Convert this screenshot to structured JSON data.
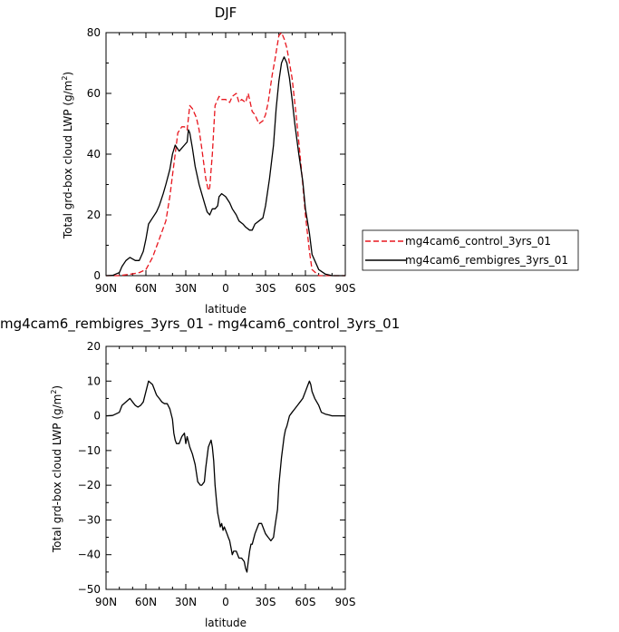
{
  "chart_data": [
    {
      "type": "line",
      "title": "DJF",
      "xlabel": "latitude",
      "ylabel": "Total grd-box cloud LWP (g/m²)",
      "ylabel_text": "Total grd-box cloud LWP (g/m",
      "ylabel_sup": "2",
      "ylabel_close": ")",
      "x_ticks": [
        90,
        60,
        30,
        0,
        -30,
        -60,
        -90
      ],
      "x_tick_labels": [
        "90N",
        "60N",
        "30N",
        "0",
        "30S",
        "60S",
        "90S"
      ],
      "xlim": [
        90,
        -90
      ],
      "ylim": [
        0,
        80
      ],
      "y_ticks": [
        0,
        20,
        40,
        60,
        80
      ],
      "legend_position": "right",
      "series": [
        {
          "name": "mg4cam6_control_3yrs_01",
          "color": "#e8161e",
          "dash": "dashed",
          "x": [
            90,
            80,
            75,
            70,
            65,
            60,
            55,
            50,
            45,
            42,
            40,
            38,
            36,
            33,
            31,
            29,
            27,
            25,
            22,
            20,
            18,
            15,
            13,
            12,
            10,
            8,
            5,
            3,
            0,
            -3,
            -5,
            -8,
            -10,
            -12,
            -15,
            -17,
            -20,
            -22,
            -25,
            -28,
            -30,
            -32,
            -35,
            -37,
            -40,
            -42,
            -44,
            -46,
            -48,
            -50,
            -53,
            -55,
            -58,
            -60,
            -63,
            -65,
            -70,
            -75,
            -80,
            -90
          ],
          "y": [
            0,
            0,
            0.3,
            0.6,
            1,
            2,
            6,
            12,
            18,
            26,
            33,
            40,
            47,
            49,
            49,
            48,
            56,
            55,
            52,
            48,
            42,
            32,
            28,
            29,
            40,
            56,
            59,
            58,
            58,
            57,
            59,
            60,
            57,
            58,
            57,
            60,
            54,
            53,
            50,
            51,
            53,
            57,
            66,
            71,
            79,
            80,
            78,
            75,
            70,
            65,
            53,
            44,
            30,
            20,
            8,
            2,
            0,
            0,
            0,
            0
          ]
        },
        {
          "name": "mg4cam6_rembigres_3yrs_01",
          "color": "#000000",
          "dash": "solid",
          "x": [
            90,
            85,
            80,
            78,
            75,
            72,
            68,
            65,
            62,
            60,
            58,
            55,
            52,
            50,
            47,
            45,
            42,
            40,
            38,
            35,
            33,
            31,
            29,
            28,
            27,
            25,
            23,
            20,
            18,
            16,
            14,
            12,
            10,
            8,
            6,
            5,
            3,
            0,
            -3,
            -5,
            -8,
            -10,
            -13,
            -15,
            -18,
            -20,
            -22,
            -25,
            -28,
            -30,
            -33,
            -36,
            -38,
            -40,
            -42,
            -44,
            -46,
            -48,
            -50,
            -52,
            -55,
            -58,
            -60,
            -63,
            -65,
            -70,
            -75,
            -80,
            -85,
            -90
          ],
          "y": [
            0,
            0.1,
            1,
            3,
            5,
            6,
            5,
            5,
            8,
            12,
            17,
            19,
            21,
            23,
            27,
            30,
            35,
            40,
            43,
            41,
            42,
            43,
            44,
            48,
            47,
            42,
            36,
            30,
            27,
            24,
            21,
            20,
            22,
            22,
            23,
            26,
            27,
            26,
            24,
            22,
            20,
            18,
            17,
            16,
            15,
            15,
            17,
            18,
            19,
            23,
            32,
            43,
            55,
            64,
            70,
            72,
            70,
            65,
            58,
            50,
            40,
            31,
            22,
            14,
            7,
            2,
            0.5,
            0,
            0,
            0
          ]
        }
      ]
    },
    {
      "type": "line",
      "title": "mg4cam6_rembigres_3yrs_01 - mg4cam6_control_3yrs_01",
      "xlabel": "latitude",
      "ylabel": "Total grd-box cloud LWP (g/m²)",
      "ylabel_text": "Total grd-box cloud LWP (g/m",
      "ylabel_sup": "2",
      "ylabel_close": ")",
      "x_ticks": [
        90,
        60,
        30,
        0,
        -30,
        -60,
        -90
      ],
      "x_tick_labels": [
        "90N",
        "60N",
        "30N",
        "0",
        "30S",
        "60S",
        "90S"
      ],
      "xlim": [
        90,
        -90
      ],
      "ylim": [
        -50,
        20
      ],
      "y_ticks": [
        -50,
        -40,
        -30,
        -20,
        -10,
        0,
        10,
        20
      ],
      "series": [
        {
          "color": "#000000",
          "dash": "solid",
          "x": [
            90,
            85,
            80,
            78,
            75,
            72,
            70,
            68,
            66,
            64,
            62,
            60,
            58,
            55,
            52,
            50,
            48,
            46,
            44,
            42,
            40,
            39,
            38,
            37,
            35,
            33,
            31,
            30,
            29,
            27,
            25,
            23,
            21,
            19,
            18,
            16,
            15,
            13,
            12,
            11,
            10,
            9,
            8,
            7,
            6,
            5,
            4,
            3,
            2,
            1,
            0,
            -1,
            -2,
            -3,
            -4,
            -5,
            -6,
            -8,
            -10,
            -12,
            -14,
            -15,
            -16,
            -17,
            -18,
            -19,
            -20,
            -22,
            -24,
            -25,
            -27,
            -29,
            -30,
            -32,
            -34,
            -36,
            -37,
            -39,
            -40,
            -42,
            -44,
            -45,
            -46,
            -48,
            -50,
            -52,
            -54,
            -56,
            -58,
            -60,
            -62,
            -63,
            -64,
            -65,
            -67,
            -70,
            -72,
            -75,
            -78,
            -80,
            -85,
            -90
          ],
          "y": [
            0,
            0.1,
            1,
            3,
            4,
            5,
            4,
            3,
            2.5,
            3,
            4,
            7,
            10,
            9,
            6,
            5,
            4,
            3.5,
            3.5,
            2,
            -1,
            -5,
            -7,
            -8,
            -8,
            -6,
            -5,
            -8,
            -6,
            -9,
            -11,
            -14,
            -19,
            -20,
            -20,
            -19,
            -15,
            -9,
            -8,
            -7,
            -9,
            -13,
            -20,
            -24,
            -28,
            -30,
            -32,
            -31,
            -33,
            -32,
            -33,
            -34,
            -35,
            -36,
            -38,
            -40,
            -39,
            -39,
            -41,
            -41,
            -42,
            -44,
            -45,
            -42,
            -39,
            -37,
            -37,
            -34,
            -32,
            -31,
            -31,
            -33,
            -34,
            -35,
            -36,
            -35,
            -32,
            -27,
            -20,
            -12,
            -6,
            -4,
            -3,
            0,
            1,
            2,
            3,
            4,
            5,
            7,
            9,
            10,
            9,
            7,
            5,
            3,
            1,
            0.5,
            0.2,
            0,
            0,
            0
          ]
        }
      ]
    }
  ]
}
